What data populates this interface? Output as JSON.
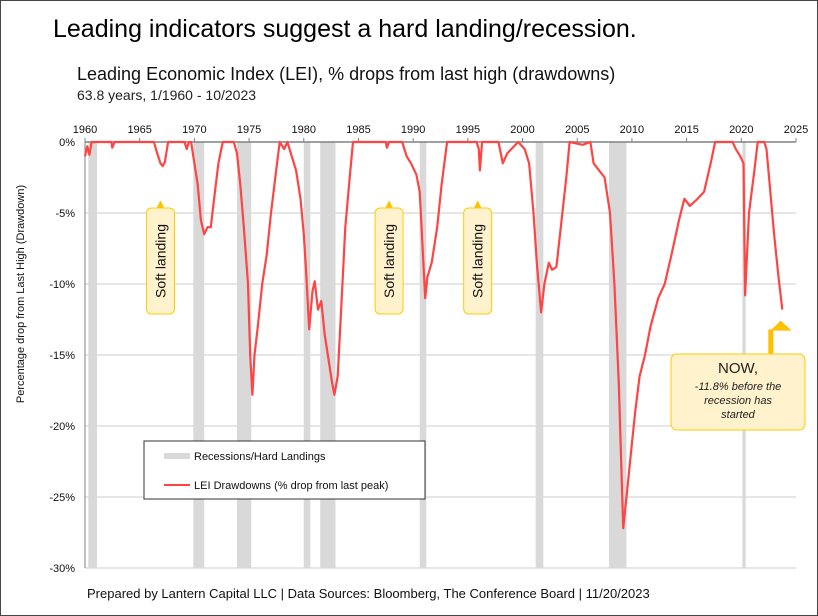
{
  "title": "Leading indicators suggest a hard landing/recession.",
  "footer": "Prepared by Lantern Capital LLC | Data Sources: Bloomberg, The Conference Board | 11/20/2023",
  "colors": {
    "line": "#ff4444",
    "recession": "#d9d9d9",
    "annotation_fill": "#fff2cc",
    "annotation_border": "#ffcc00",
    "arrow": "#ffc000"
  },
  "chart_data": {
    "type": "line",
    "title": "Leading Economic Index (LEI), % drops from last high (drawdowns)",
    "subtitle": "63.8 years, 1/1960 - 10/2023",
    "xlabel": "",
    "ylabel": "Percentage drop from Last High (Drawdown)",
    "xlim": [
      1960,
      2025
    ],
    "ylim": [
      -30,
      0
    ],
    "xticks": [
      1960,
      1965,
      1970,
      1975,
      1980,
      1985,
      1990,
      1995,
      2000,
      2005,
      2010,
      2015,
      2020,
      2025
    ],
    "yticks": [
      {
        "v": 0,
        "label": "0%"
      },
      {
        "v": -5,
        "label": "-5%"
      },
      {
        "v": -10,
        "label": "-10%"
      },
      {
        "v": -15,
        "label": "-15%"
      },
      {
        "v": -20,
        "label": "-20%"
      },
      {
        "v": -25,
        "label": "-25%"
      },
      {
        "v": -30,
        "label": "-30%"
      }
    ],
    "legend": {
      "placement": "bottom-left",
      "items": [
        "Recessions/Hard Landings",
        "LEI Drawdowns (% drop from last peak)"
      ]
    },
    "recessions": [
      [
        1960.3,
        1961.1
      ],
      [
        1969.9,
        1970.9
      ],
      [
        1973.9,
        1975.2
      ],
      [
        1980.0,
        1980.6
      ],
      [
        1981.5,
        1982.9
      ],
      [
        1990.6,
        1991.2
      ],
      [
        2001.2,
        2001.9
      ],
      [
        2007.9,
        2009.5
      ],
      [
        2020.1,
        2020.4
      ]
    ],
    "series": [
      {
        "name": "LEI Drawdowns (% drop from last peak)",
        "points": [
          [
            1960,
            -1
          ],
          [
            1960.2,
            -0.3
          ],
          [
            1960.4,
            -0.9
          ],
          [
            1960.6,
            0
          ],
          [
            1962.4,
            0
          ],
          [
            1962.5,
            -0.4
          ],
          [
            1962.7,
            0
          ],
          [
            1966.3,
            0
          ],
          [
            1966.6,
            -0.8
          ],
          [
            1966.9,
            -1.5
          ],
          [
            1967.1,
            -1.7
          ],
          [
            1967.3,
            -1.4
          ],
          [
            1967.6,
            0
          ],
          [
            1969.1,
            0
          ],
          [
            1969.3,
            -0.5
          ],
          [
            1969.5,
            0
          ],
          [
            1969.7,
            0
          ],
          [
            1970.0,
            -1.5
          ],
          [
            1970.3,
            -3
          ],
          [
            1970.6,
            -5.5
          ],
          [
            1970.9,
            -6.5
          ],
          [
            1971.2,
            -6
          ],
          [
            1971.5,
            -6
          ],
          [
            1971.8,
            -4
          ],
          [
            1972.2,
            -1.5
          ],
          [
            1972.6,
            0
          ],
          [
            1973.6,
            0
          ],
          [
            1973.9,
            -0.8
          ],
          [
            1974.2,
            -3
          ],
          [
            1974.5,
            -5.8
          ],
          [
            1974.9,
            -10
          ],
          [
            1975.1,
            -15
          ],
          [
            1975.3,
            -17.8
          ],
          [
            1975.5,
            -15
          ],
          [
            1975.8,
            -13
          ],
          [
            1976.2,
            -10
          ],
          [
            1976.6,
            -8
          ],
          [
            1977.0,
            -5
          ],
          [
            1977.4,
            -2.5
          ],
          [
            1977.8,
            0
          ],
          [
            1978.2,
            -0.5
          ],
          [
            1978.5,
            0
          ],
          [
            1978.9,
            -1
          ],
          [
            1979.3,
            -2
          ],
          [
            1979.7,
            -4
          ],
          [
            1980.0,
            -6.5
          ],
          [
            1980.2,
            -9
          ],
          [
            1980.5,
            -13.2
          ],
          [
            1980.8,
            -10.5
          ],
          [
            1981.0,
            -9.8
          ],
          [
            1981.3,
            -11.8
          ],
          [
            1981.6,
            -11.2
          ],
          [
            1981.9,
            -13.5
          ],
          [
            1982.3,
            -15.5
          ],
          [
            1982.6,
            -17
          ],
          [
            1982.8,
            -17.8
          ],
          [
            1983.1,
            -16.5
          ],
          [
            1983.4,
            -12
          ],
          [
            1983.8,
            -6
          ],
          [
            1984.2,
            -2.5
          ],
          [
            1984.5,
            0
          ],
          [
            1987.5,
            0
          ],
          [
            1987.6,
            -0.4
          ],
          [
            1987.8,
            0
          ],
          [
            1989.0,
            0
          ],
          [
            1989.4,
            -1
          ],
          [
            1989.8,
            -1.5
          ],
          [
            1990.3,
            -2.3
          ],
          [
            1990.6,
            -3.5
          ],
          [
            1990.9,
            -8
          ],
          [
            1991.1,
            -11
          ],
          [
            1991.3,
            -9.5
          ],
          [
            1991.7,
            -8.5
          ],
          [
            1992.2,
            -6
          ],
          [
            1992.6,
            -3
          ],
          [
            1993.1,
            0
          ],
          [
            1995.8,
            0
          ],
          [
            1996.0,
            -0.5
          ],
          [
            1996.1,
            -2
          ],
          [
            1996.3,
            0
          ],
          [
            1997.8,
            0
          ],
          [
            1998.2,
            -1.5
          ],
          [
            1998.6,
            -0.8
          ],
          [
            1999.6,
            0
          ],
          [
            2000.2,
            -0.5
          ],
          [
            2000.6,
            -1.5
          ],
          [
            2001.0,
            -5
          ],
          [
            2001.3,
            -8.5
          ],
          [
            2001.7,
            -12
          ],
          [
            2002.0,
            -10
          ],
          [
            2002.4,
            -8.5
          ],
          [
            2002.7,
            -9
          ],
          [
            2003.1,
            -8.8
          ],
          [
            2003.5,
            -6
          ],
          [
            2004.0,
            -2.5
          ],
          [
            2004.3,
            0
          ],
          [
            2005.5,
            -0.2
          ],
          [
            2006.2,
            0
          ],
          [
            2006.5,
            -1.5
          ],
          [
            2007.0,
            -2
          ],
          [
            2007.5,
            -2.5
          ],
          [
            2008.0,
            -5
          ],
          [
            2008.4,
            -10
          ],
          [
            2008.8,
            -17
          ],
          [
            2009.2,
            -27.2
          ],
          [
            2009.5,
            -25
          ],
          [
            2009.9,
            -22
          ],
          [
            2010.3,
            -19
          ],
          [
            2010.7,
            -16.5
          ],
          [
            2011.2,
            -15
          ],
          [
            2011.7,
            -13
          ],
          [
            2012.4,
            -11
          ],
          [
            2013.0,
            -10
          ],
          [
            2013.6,
            -8
          ],
          [
            2014.3,
            -5.5
          ],
          [
            2014.8,
            -4
          ],
          [
            2015.3,
            -4.5
          ],
          [
            2016.0,
            -4
          ],
          [
            2016.6,
            -3.5
          ],
          [
            2017.2,
            -1.5
          ],
          [
            2017.6,
            0
          ],
          [
            2019.2,
            0
          ],
          [
            2019.5,
            -0.5
          ],
          [
            2019.9,
            -1
          ],
          [
            2020.2,
            -1.5
          ],
          [
            2020.35,
            -10.8
          ],
          [
            2020.7,
            -5
          ],
          [
            2021.2,
            -2
          ],
          [
            2021.5,
            0
          ],
          [
            2022.1,
            0
          ],
          [
            2022.3,
            -0.5
          ],
          [
            2022.6,
            -3
          ],
          [
            2023.0,
            -6.5
          ],
          [
            2023.4,
            -9.5
          ],
          [
            2023.75,
            -11.8
          ]
        ]
      }
    ],
    "annotations": [
      {
        "text": "Soft landing",
        "x": 1966.9,
        "y": -2
      },
      {
        "text": "Soft landing",
        "x": 1987.8,
        "y": -2
      },
      {
        "text": "Soft landing",
        "x": 1995.9,
        "y": -2
      },
      {
        "text": "NOW,",
        "detail": [
          "-11.8% before the",
          "recession has",
          "started"
        ],
        "x": 2023.75,
        "y": -12.3
      }
    ]
  }
}
